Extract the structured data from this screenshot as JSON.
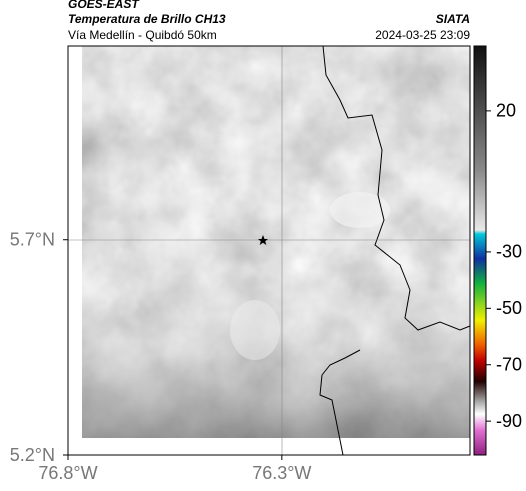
{
  "header": {
    "title": "GOES-EAST",
    "subtitle": "Temperatura de Brillo CH13",
    "location": "Vía Medellín - Quibdó 50km",
    "source": "SIATA",
    "timestamp": "2024-03-25 23:09"
  },
  "map": {
    "xlim": [
      -76.8,
      -75.86
    ],
    "ylim": [
      5.2,
      6.15
    ],
    "xticks": [
      {
        "value": -76.8,
        "label": "76.8°W"
      },
      {
        "value": -76.3,
        "label": "76.3°W"
      }
    ],
    "yticks": [
      {
        "value": 5.7,
        "label": "5.7°N"
      },
      {
        "value": 5.2,
        "label": "5.2°N"
      }
    ]
  },
  "colorbar": {
    "clim": [
      -102,
      43
    ],
    "ticks": [
      20,
      -30,
      -50,
      -70,
      -90
    ]
  }
}
